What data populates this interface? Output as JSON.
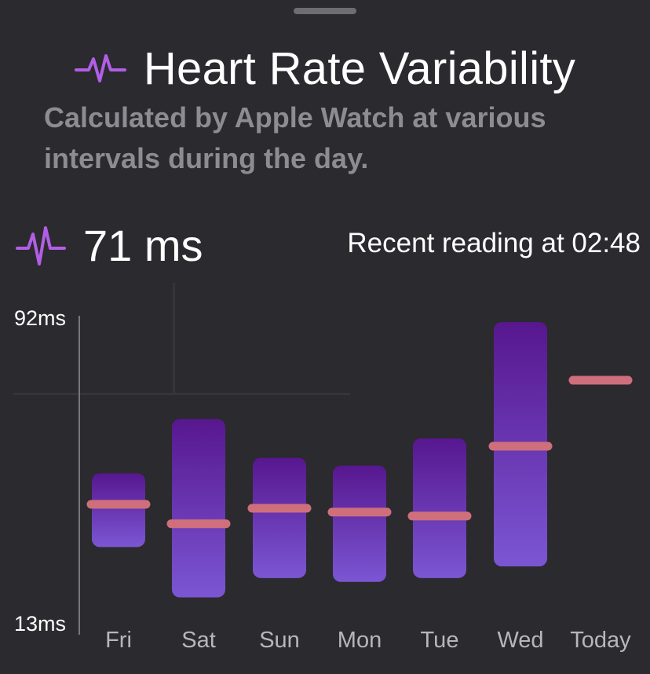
{
  "header": {
    "title": "Heart Rate Variability",
    "subtitle": "Calculated by Apple Watch at various intervals during the day.",
    "icon": "heart-pulse-icon",
    "accent_color": "#b25ee6"
  },
  "reading": {
    "value": "71 ms",
    "note": "Recent reading at 02:48"
  },
  "chart_data": {
    "type": "bar",
    "subtype": "range",
    "categories": [
      "Fri",
      "Sat",
      "Sun",
      "Mon",
      "Tue",
      "Wed",
      "Today"
    ],
    "series": [
      {
        "values_min": [
          34,
          21,
          26,
          25,
          26,
          29,
          null
        ],
        "values_max": [
          53,
          67,
          57,
          55,
          62,
          92,
          null
        ]
      },
      {
        "values": [
          45,
          40,
          44,
          43,
          42,
          60,
          77
        ]
      }
    ],
    "ylim": [
      13,
      92
    ],
    "ytick_labels": [
      "92ms",
      "13ms"
    ],
    "colors": {
      "range_top": "#57178f",
      "range_bottom": "#7b56d3",
      "mean": "#cf6f7c"
    }
  }
}
